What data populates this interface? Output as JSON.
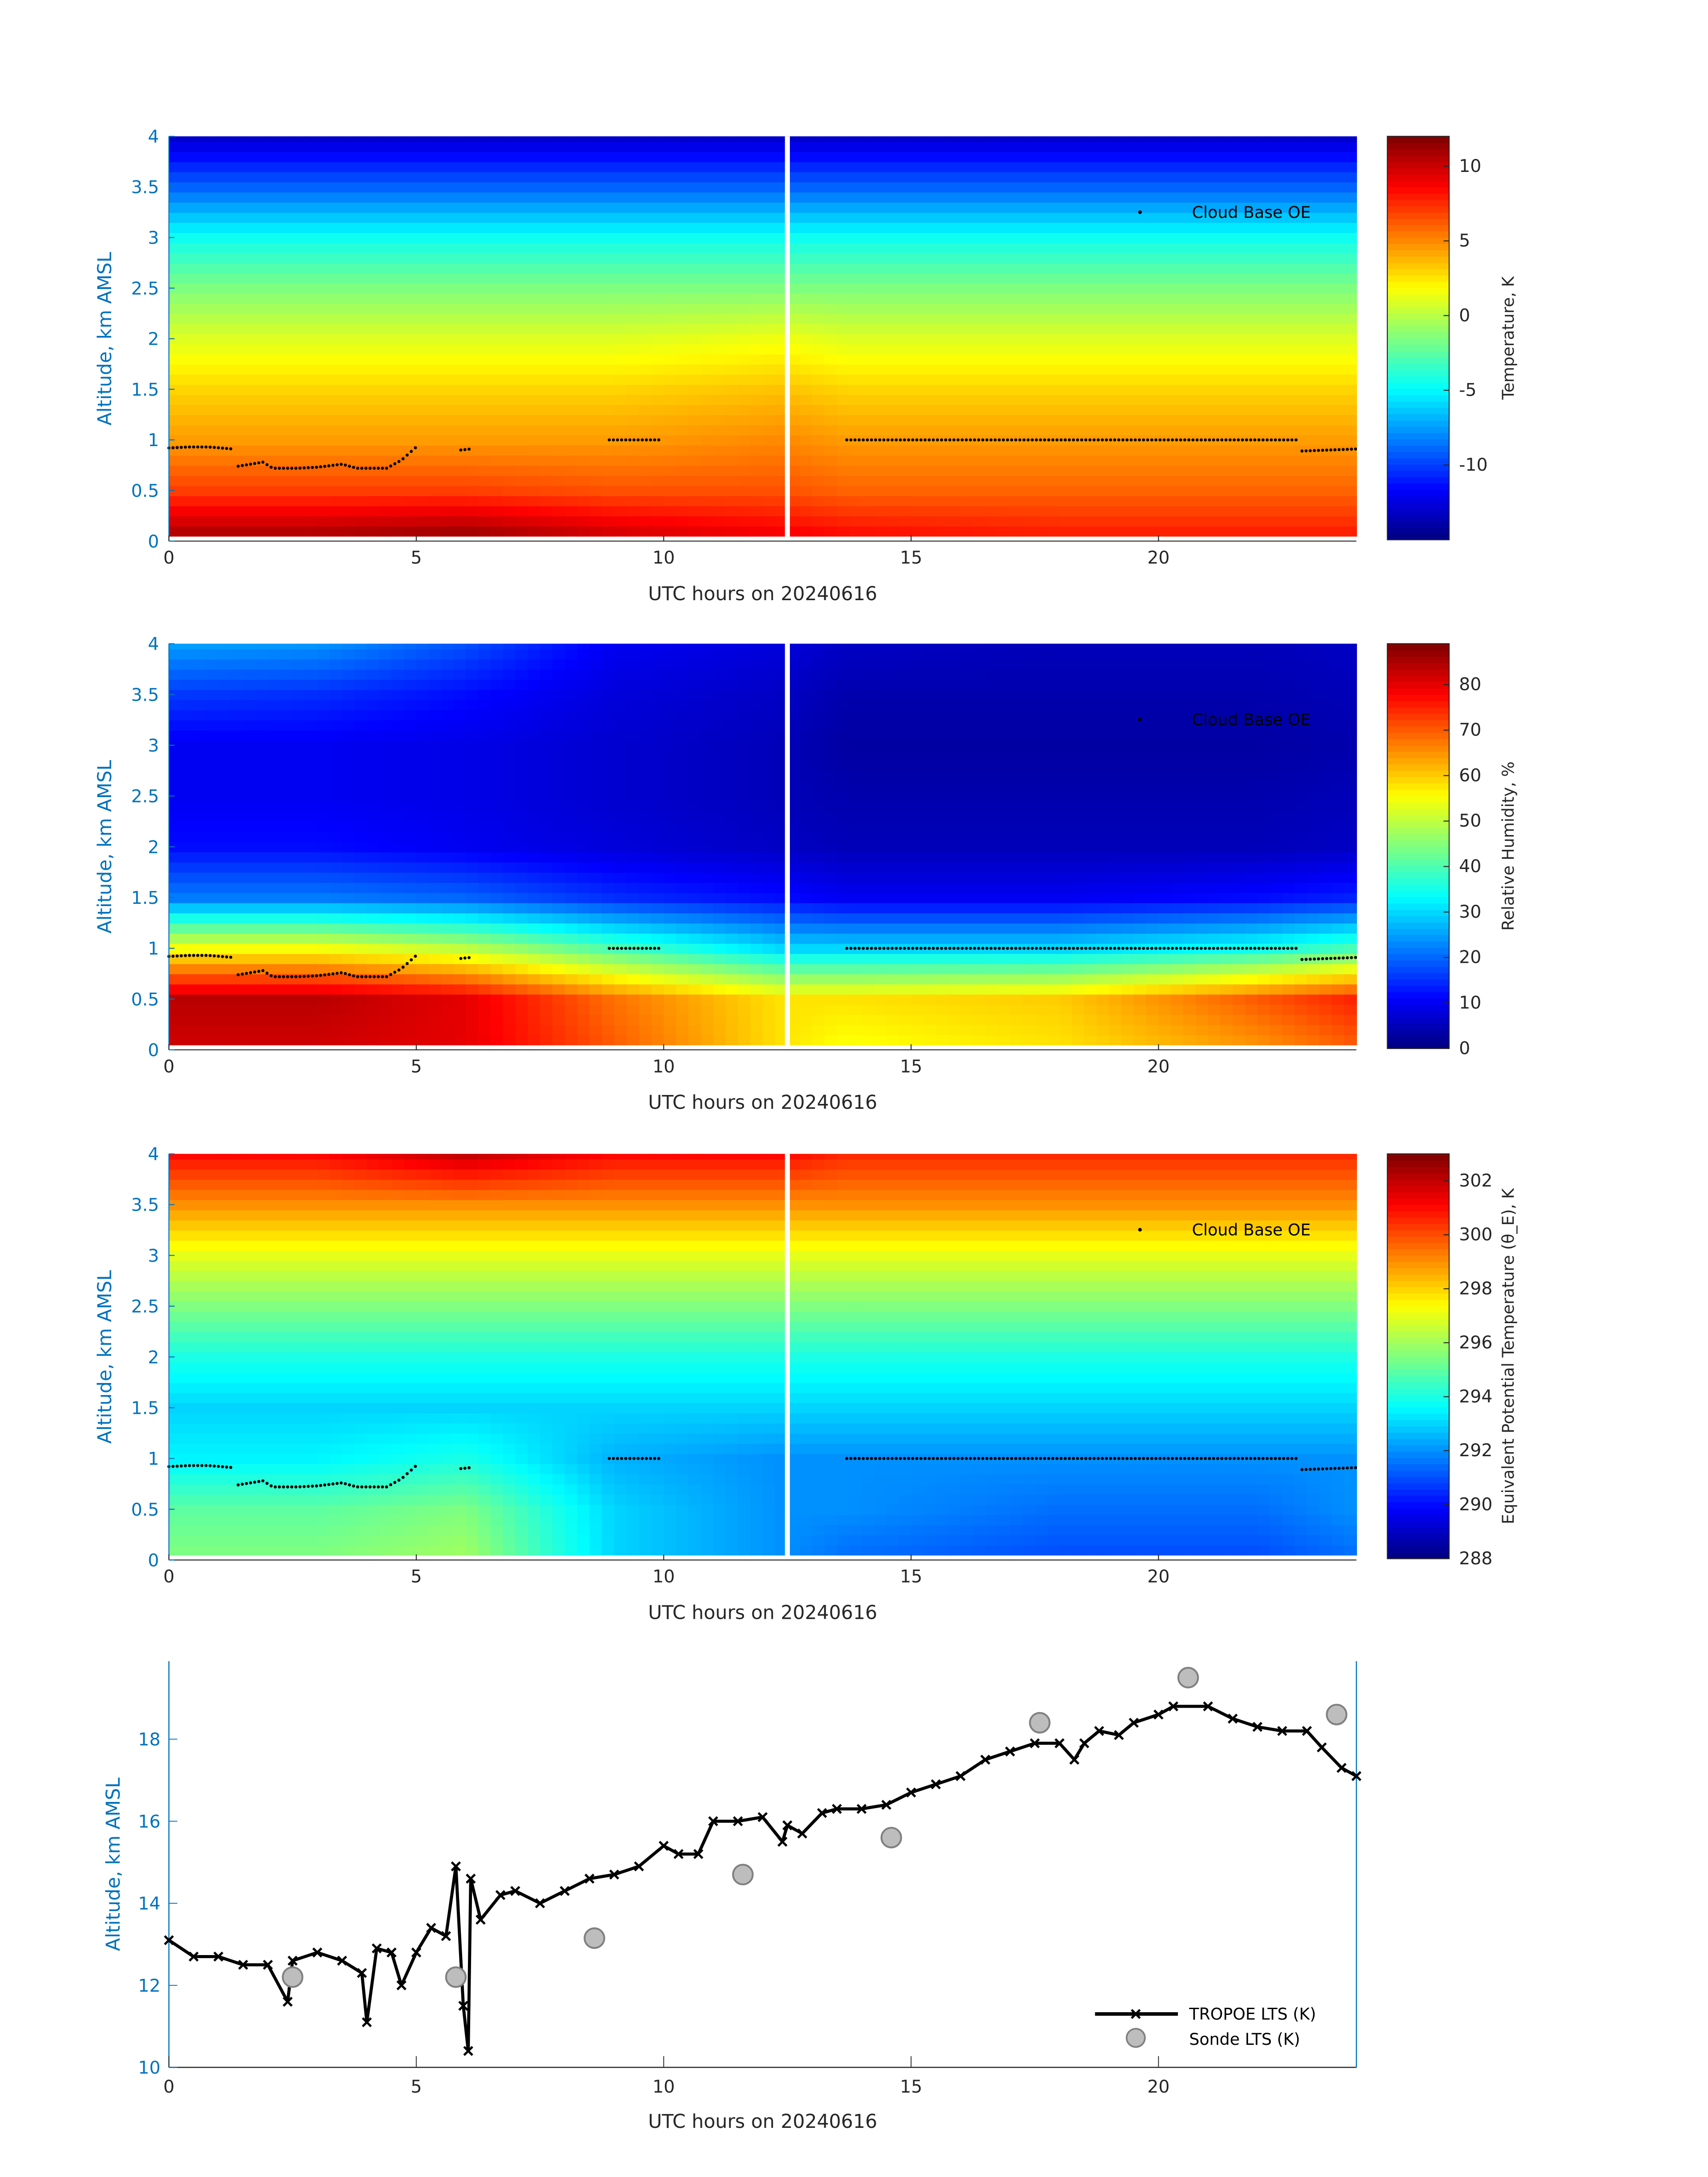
{
  "chart_data": [
    {
      "type": "heatmap",
      "xlabel": "UTC hours on 20240616",
      "ylabel": "Altitude, km AMSL",
      "colorbar_label": "Temperature, K",
      "colormap": "jet",
      "clim": [
        -15,
        12
      ],
      "colorbar_ticks": [
        10,
        5,
        0,
        -5,
        -10
      ],
      "xlim": [
        0,
        24
      ],
      "ylim": [
        0,
        4
      ],
      "xticks": [
        0,
        5,
        10,
        15,
        20
      ],
      "yticks": [
        0,
        0.5,
        1,
        1.5,
        2,
        2.5,
        3,
        3.5,
        4
      ],
      "data_gap_hours": [
        12.45,
        12.55
      ],
      "times": [
        0,
        3,
        6,
        9,
        12.4,
        13.7,
        18,
        22,
        24
      ],
      "altitudes": [
        0.05,
        0.5,
        1,
        1.5,
        2,
        2.5,
        3,
        3.5,
        4
      ],
      "values": [
        [
          11,
          11,
          11.5,
          10,
          9,
          8.5,
          8,
          8,
          8
        ],
        [
          7,
          7,
          7,
          6.5,
          6.5,
          6,
          6,
          6,
          6
        ],
        [
          4.5,
          4.5,
          4.5,
          4.5,
          5,
          4.5,
          4.5,
          4.5,
          4.5
        ],
        [
          3,
          3,
          3,
          3,
          3.5,
          3,
          3,
          3,
          3
        ],
        [
          1,
          1,
          1,
          1,
          1.5,
          1,
          1,
          1,
          1
        ],
        [
          -1.5,
          -1.5,
          -1.5,
          -1.5,
          -1.5,
          -1.5,
          -1.5,
          -1.5,
          -1.5
        ],
        [
          -4.5,
          -4.5,
          -4.5,
          -4.5,
          -4.5,
          -4.5,
          -4.5,
          -4.5,
          -4.5
        ],
        [
          -9,
          -9,
          -9,
          -9,
          -9,
          -9,
          -9,
          -9,
          -9
        ],
        [
          -13,
          -13,
          -13,
          -13,
          -13,
          -13,
          -13,
          -13,
          -13
        ]
      ],
      "legend": "Cloud Base OE"
    },
    {
      "type": "heatmap",
      "xlabel": "UTC hours on 20240616",
      "ylabel": "Altitude, km AMSL",
      "colorbar_label": "Relative Humidity, %",
      "colormap": "jet",
      "clim": [
        0,
        89
      ],
      "colorbar_ticks": [
        80,
        70,
        60,
        50,
        40,
        30,
        20,
        10,
        0
      ],
      "xlim": [
        0,
        24
      ],
      "ylim": [
        0,
        4
      ],
      "xticks": [
        0,
        5,
        10,
        15,
        20
      ],
      "yticks": [
        0,
        0.5,
        1,
        1.5,
        2,
        2.5,
        3,
        3.5,
        4
      ],
      "data_gap_hours": [
        12.45,
        12.55
      ],
      "times": [
        0,
        3,
        6,
        9,
        12.4,
        13.7,
        18,
        22,
        24
      ],
      "altitudes": [
        0.05,
        0.5,
        1,
        1.5,
        2,
        2.5,
        3,
        3.5,
        4
      ],
      "values": [
        [
          82,
          82,
          80,
          70,
          58,
          55,
          58,
          65,
          70
        ],
        [
          84,
          84,
          80,
          68,
          58,
          58,
          60,
          70,
          75
        ],
        [
          55,
          55,
          50,
          40,
          30,
          30,
          30,
          35,
          40
        ],
        [
          22,
          22,
          20,
          15,
          12,
          10,
          10,
          12,
          14
        ],
        [
          12,
          12,
          10,
          8,
          6,
          5,
          5,
          5,
          6
        ],
        [
          10,
          10,
          9,
          7,
          5,
          4,
          4,
          4,
          5
        ],
        [
          10,
          10,
          9,
          7,
          5,
          3,
          3,
          3,
          4
        ],
        [
          16,
          15,
          12,
          8,
          6,
          4,
          4,
          4,
          5
        ],
        [
          25,
          24,
          18,
          10,
          8,
          6,
          5,
          5,
          6
        ]
      ],
      "legend": "Cloud Base OE"
    },
    {
      "type": "heatmap",
      "xlabel": "UTC hours on 20240616",
      "ylabel": "Altitude, km AMSL",
      "colorbar_label": "Equivalent Potential Temperature (θ_E), K",
      "colormap": "jet",
      "clim": [
        288,
        303
      ],
      "colorbar_ticks": [
        302,
        300,
        298,
        296,
        294,
        292,
        290,
        288
      ],
      "xlim": [
        0,
        24
      ],
      "ylim": [
        0,
        4
      ],
      "xticks": [
        0,
        5,
        10,
        15,
        20
      ],
      "yticks": [
        0,
        0.5,
        1,
        1.5,
        2,
        2.5,
        3,
        3.5,
        4
      ],
      "data_gap_hours": [
        12.45,
        12.55
      ],
      "times": [
        0,
        3,
        6,
        9,
        12.4,
        13.7,
        18,
        22,
        24
      ],
      "altitudes": [
        0.05,
        0.5,
        1,
        1.5,
        2,
        2.5,
        3,
        3.5,
        4
      ],
      "values": [
        [
          295.5,
          295.5,
          296,
          293,
          292,
          291.5,
          291,
          291,
          291.5
        ],
        [
          295,
          295,
          295.5,
          293,
          292,
          292,
          291.5,
          291.5,
          292
        ],
        [
          293.5,
          293.5,
          294,
          292.5,
          292,
          292,
          292,
          292,
          292
        ],
        [
          293,
          293,
          293,
          293,
          293,
          293,
          293,
          293,
          293
        ],
        [
          294,
          294,
          294,
          294,
          294,
          294,
          294,
          294,
          294
        ],
        [
          295.5,
          295.5,
          295.5,
          295.5,
          295.5,
          295.5,
          295.5,
          295.5,
          295.5
        ],
        [
          297,
          297,
          297,
          297,
          297,
          297,
          297,
          297,
          297
        ],
        [
          299,
          299,
          299,
          299,
          299,
          299,
          299,
          299,
          299
        ],
        [
          301,
          301,
          302,
          301,
          301,
          300.5,
          300.5,
          300.5,
          300.5
        ]
      ],
      "legend": "Cloud Base OE"
    },
    {
      "type": "line",
      "xlabel": "UTC hours on 20240616",
      "ylabel": "Altitude, km AMSL",
      "xlim": [
        0,
        24
      ],
      "ylim": [
        10,
        19.9
      ],
      "xticks": [
        0,
        5,
        10,
        15,
        20
      ],
      "yticks": [
        10,
        12,
        14,
        16,
        18
      ],
      "legend_position": "bottom-right",
      "series": [
        {
          "name": "TROPOE LTS (K)",
          "marker": "x",
          "color": "#000000",
          "x": [
            0,
            0.5,
            1,
            1.5,
            2,
            2.4,
            2.5,
            3,
            3.5,
            3.9,
            4,
            4.2,
            4.5,
            4.7,
            5,
            5.3,
            5.6,
            5.8,
            5.95,
            6.05,
            6.1,
            6.3,
            6.7,
            7,
            7.5,
            8,
            8.5,
            9,
            9.5,
            10,
            10.3,
            10.7,
            11,
            11.5,
            12,
            12.4,
            12.5,
            12.8,
            13.2,
            13.5,
            14,
            14.5,
            15,
            15.5,
            16,
            16.5,
            17,
            17.5,
            18,
            18.3,
            18.5,
            18.8,
            19.2,
            19.5,
            20,
            20.3,
            21,
            21.5,
            22,
            22.5,
            23,
            23.3,
            23.7,
            24
          ],
          "y": [
            13.1,
            12.7,
            12.7,
            12.5,
            12.5,
            11.6,
            12.6,
            12.8,
            12.6,
            12.3,
            11.1,
            12.9,
            12.8,
            12.0,
            12.8,
            13.4,
            13.2,
            14.9,
            11.5,
            10.4,
            14.6,
            13.6,
            14.2,
            14.3,
            14.0,
            14.3,
            14.6,
            14.7,
            14.9,
            15.4,
            15.2,
            15.2,
            16.0,
            16.0,
            16.1,
            15.5,
            15.9,
            15.7,
            16.2,
            16.3,
            16.3,
            16.4,
            16.7,
            16.9,
            17.1,
            17.5,
            17.7,
            17.9,
            17.9,
            17.5,
            17.9,
            18.2,
            18.1,
            18.4,
            18.6,
            18.8,
            18.8,
            18.5,
            18.3,
            18.2,
            18.2,
            17.8,
            17.3,
            17.1
          ]
        },
        {
          "name": "Sonde LTS (K)",
          "marker": "o",
          "color": "#BDBDBD",
          "x": [
            2.5,
            5.8,
            8.6,
            11.6,
            14.6,
            17.6,
            20.6,
            23.6
          ],
          "y": [
            12.2,
            12.2,
            13.15,
            14.7,
            15.6,
            18.4,
            19.5,
            18.6
          ]
        }
      ]
    }
  ],
  "cloud_base": {
    "name": "Cloud Base OE",
    "segments": [
      {
        "t": [
          0,
          0.4,
          0.8,
          1.3
        ],
        "z": [
          0.92,
          0.93,
          0.93,
          0.91
        ]
      },
      {
        "t": [
          1.4,
          1.9,
          2.1,
          2.6,
          3,
          3.5,
          3.8,
          4.4,
          4.7,
          5.0
        ],
        "z": [
          0.74,
          0.78,
          0.72,
          0.72,
          0.73,
          0.76,
          0.72,
          0.72,
          0.8,
          0.93
        ]
      },
      {
        "t": [
          5.9,
          6.1
        ],
        "z": [
          0.9,
          0.91
        ]
      },
      {
        "t": [
          8.9,
          9.9
        ],
        "z": [
          1.0,
          1.0
        ]
      },
      {
        "t": [
          13.7,
          22.8
        ],
        "z": [
          1.0,
          1.0
        ]
      },
      {
        "t": [
          22.9,
          24
        ],
        "z": [
          0.89,
          0.91
        ]
      }
    ]
  }
}
